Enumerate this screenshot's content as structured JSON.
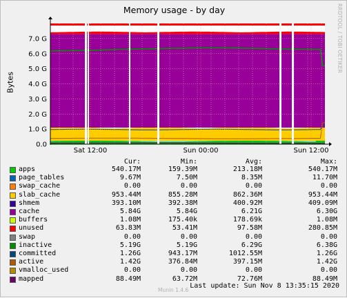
{
  "window": {
    "watermark": "RRDTOOL / TOBI OETIKER",
    "footer_brand": "Munin 1.4.6",
    "last_update_label": "Last update:",
    "last_update_value": "Sun Nov  8 13:35:15 2020"
  },
  "chart_data": {
    "type": "area",
    "title": "Memory usage - by day",
    "ylabel": "Bytes",
    "ylim": [
      0,
      8000000000
    ],
    "y_ticks": [
      "0.0",
      "1.0 G",
      "2.0 G",
      "3.0 G",
      "4.0 G",
      "5.0 G",
      "6.0 G",
      "7.0 G"
    ],
    "x_ticks": [
      "Sat 12:00",
      "Sun 00:00",
      "Sun 12:00"
    ],
    "columns": [
      "Cur:",
      "Min:",
      "Avg:",
      "Max:"
    ],
    "grid": true,
    "stacked_order": [
      "apps",
      "page_tables",
      "swap_cache",
      "slab_cache",
      "cache",
      "buffers",
      "unused",
      "swap"
    ],
    "series": [
      {
        "name": "apps",
        "color": "#00cc00",
        "cur": "540.17M",
        "min": "159.39M",
        "avg": "213.18M",
        "max": "540.17M",
        "value": 0.22
      },
      {
        "name": "page_tables",
        "color": "#0066b3",
        "cur": "9.67M",
        "min": "7.50M",
        "avg": "8.35M",
        "max": "11.70M",
        "value": 0.008
      },
      {
        "name": "swap_cache",
        "color": "#ff8000",
        "cur": "0.00",
        "min": "0.00",
        "avg": "0.00",
        "max": "0.00",
        "value": 0
      },
      {
        "name": "slab_cache",
        "color": "#ffcc00",
        "cur": "953.44M",
        "min": "855.28M",
        "avg": "862.36M",
        "max": "953.44M",
        "value": 0.87
      },
      {
        "name": "shmem",
        "color": "#330099",
        "cur": "393.10M",
        "min": "392.38M",
        "avg": "400.92M",
        "max": "409.09M",
        "value": 0.4
      },
      {
        "name": "cache",
        "color": "#990099",
        "cur": "5.84G",
        "min": "5.84G",
        "avg": "6.21G",
        "max": "6.30G",
        "value": 6.21
      },
      {
        "name": "buffers",
        "color": "#ccff00",
        "cur": "1.08M",
        "min": "175.40k",
        "avg": "178.69k",
        "max": "1.08M",
        "value": 0.001
      },
      {
        "name": "unused",
        "color": "#ff0000",
        "cur": "63.83M",
        "min": "53.41M",
        "avg": "97.58M",
        "max": "280.85M",
        "value": 0.1
      },
      {
        "name": "swap",
        "color": "#808080",
        "cur": "0.00",
        "min": "0.00",
        "avg": "0.00",
        "max": "0.00",
        "value": 0
      },
      {
        "name": "inactive",
        "color": "#008f00",
        "cur": "5.19G",
        "min": "5.19G",
        "avg": "6.29G",
        "max": "6.38G",
        "value": 6.3
      },
      {
        "name": "committed",
        "color": "#00487d",
        "cur": "1.26G",
        "min": "943.17M",
        "avg": "1012.55M",
        "max": "1.26G",
        "value": 1.0
      },
      {
        "name": "active",
        "color": "#b35a00",
        "cur": "1.42G",
        "min": "376.84M",
        "avg": "397.15M",
        "max": "1.42G",
        "value": 0.4
      },
      {
        "name": "vmalloc_used",
        "color": "#b38f00",
        "cur": "0.00",
        "min": "0.00",
        "avg": "0.00",
        "max": "0.00",
        "value": 0
      },
      {
        "name": "mapped",
        "color": "#6b006b",
        "cur": "88.49M",
        "min": "63.72M",
        "avg": "72.76M",
        "max": "88.49M",
        "value": 0.088
      }
    ]
  }
}
